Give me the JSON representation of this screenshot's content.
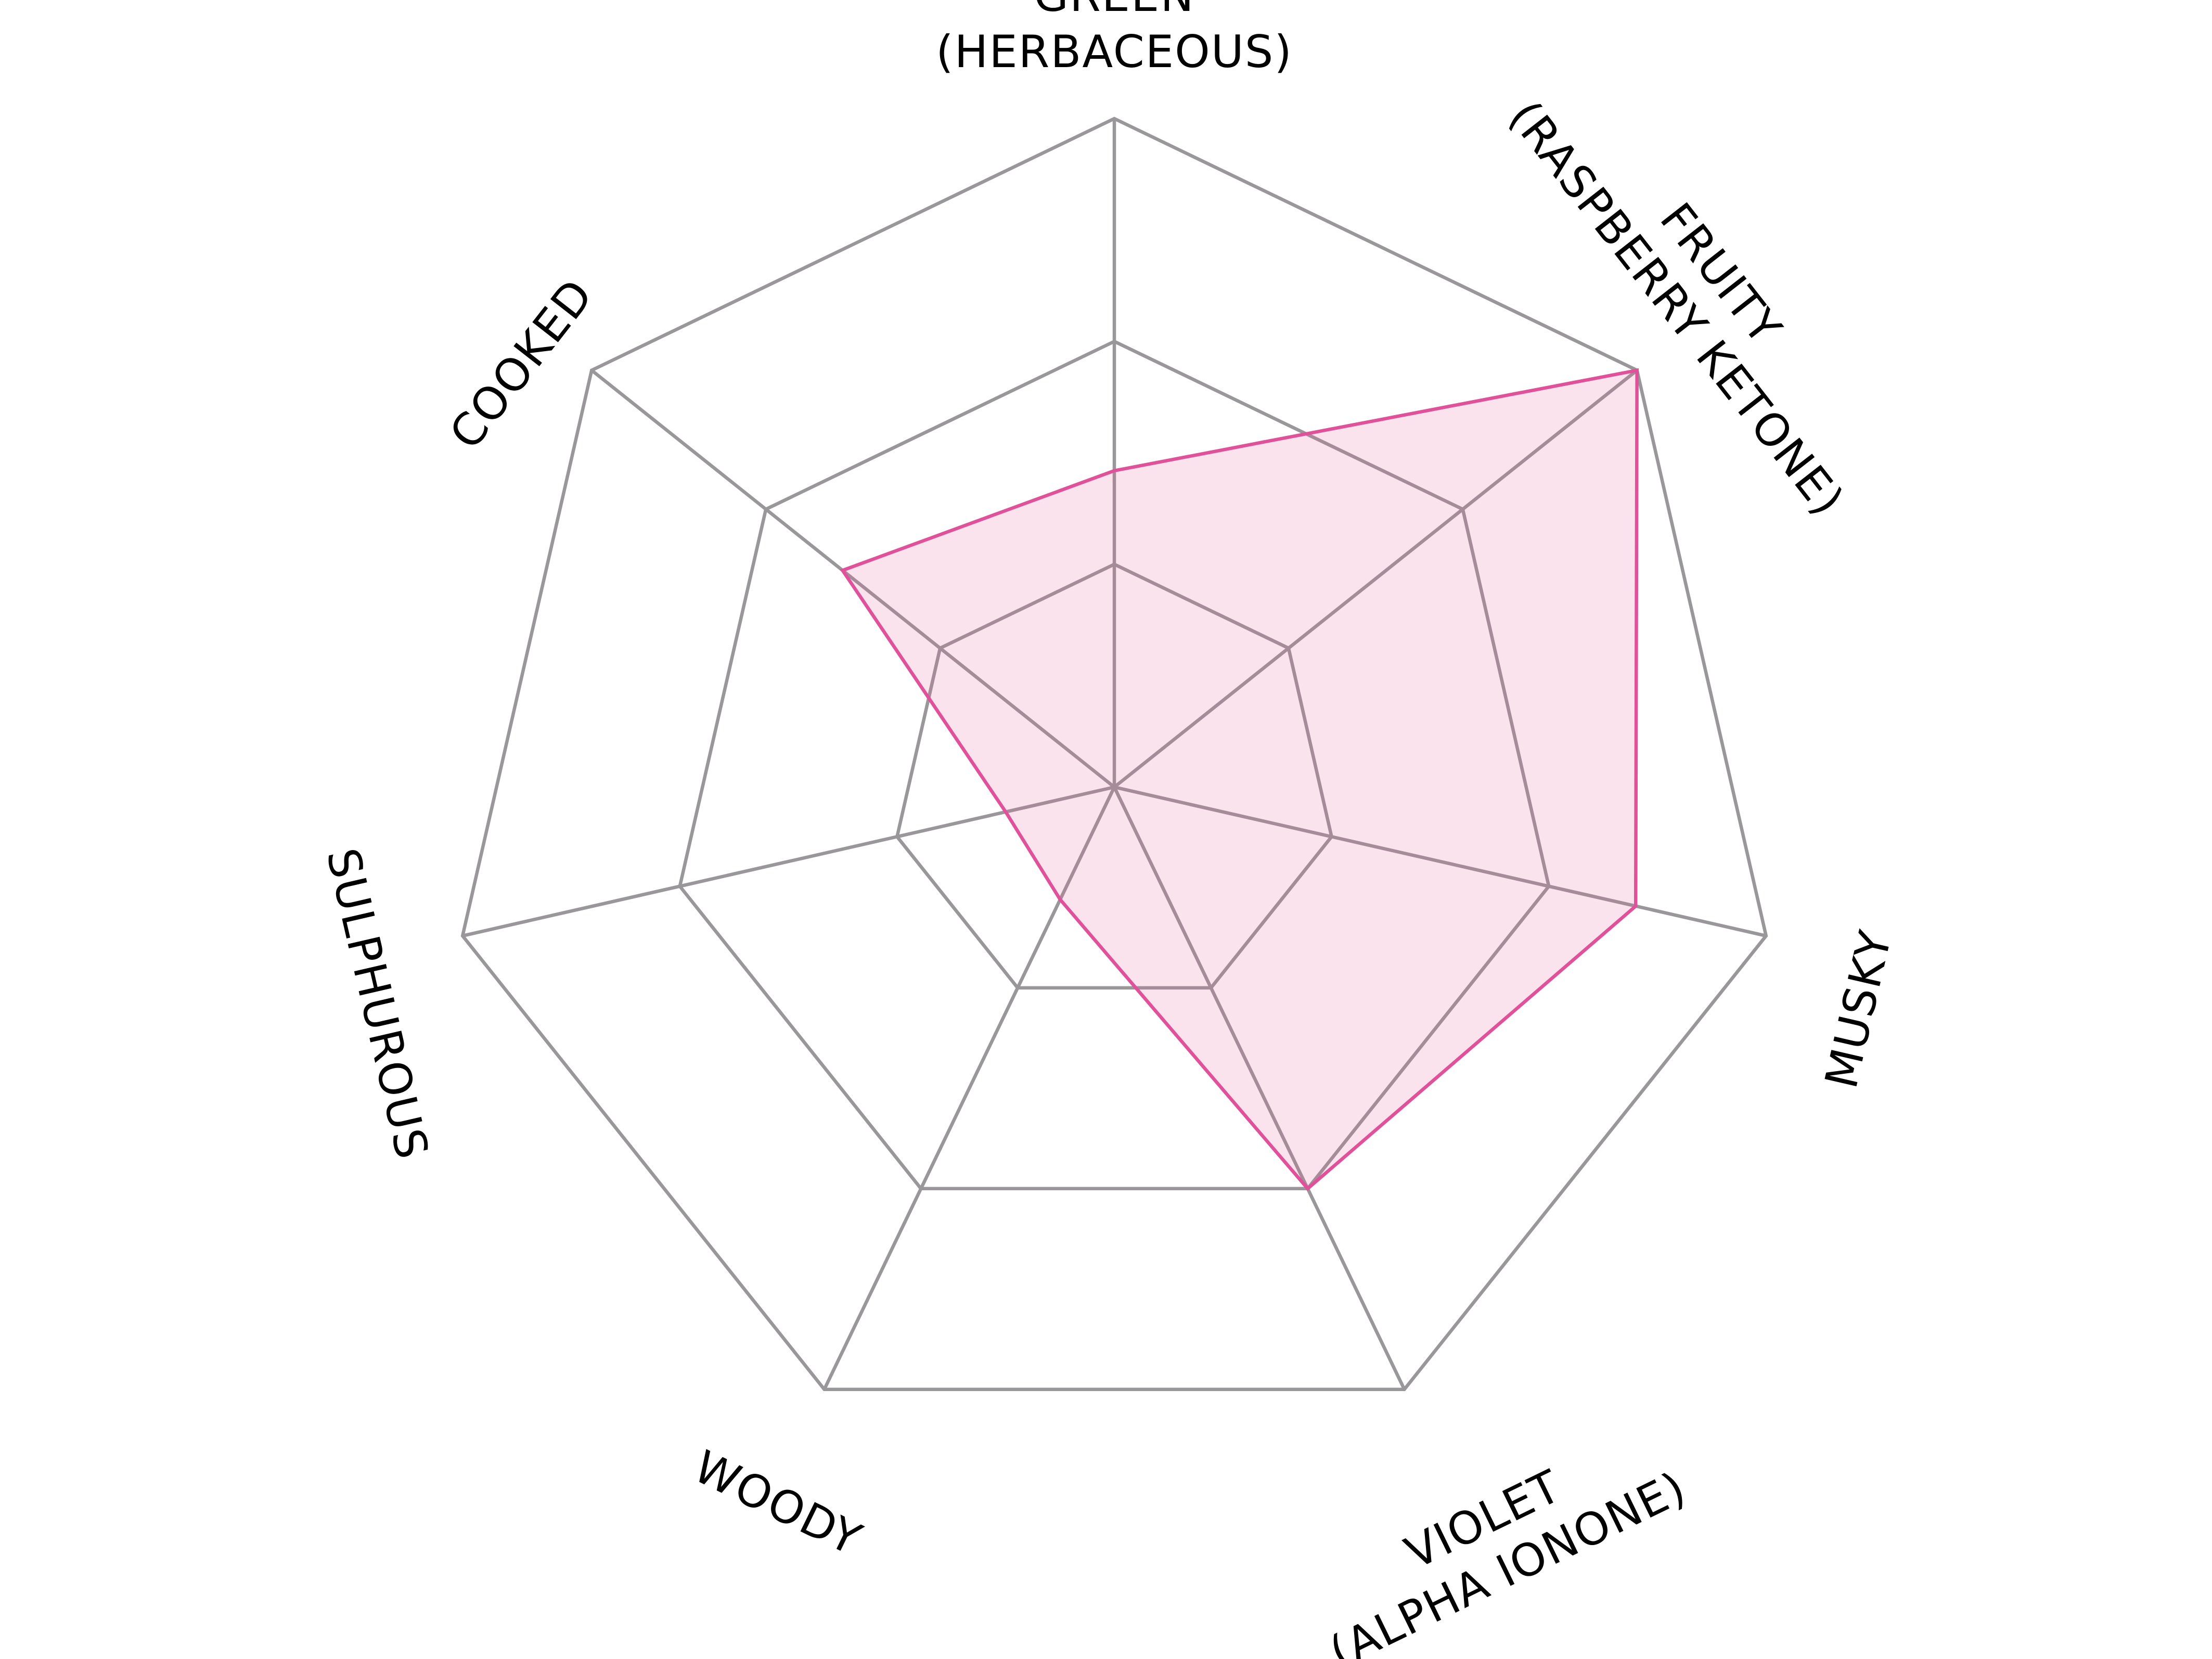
{
  "chart_data": {
    "type": "radar",
    "title": "",
    "axes": [
      {
        "label": [
          "GREEN",
          "(HERBACEOUS)"
        ]
      },
      {
        "label": [
          "FRUITY",
          "(RASPBERRY KETONE)"
        ]
      },
      {
        "label": [
          "MUSKY"
        ]
      },
      {
        "label": [
          "VIOLET",
          "(ALPHA IONONE)"
        ]
      },
      {
        "label": [
          "WOODY"
        ]
      },
      {
        "label": [
          "SULPHUROUS"
        ]
      },
      {
        "label": [
          "COOKED"
        ]
      }
    ],
    "rings": 3,
    "range": [
      0,
      3
    ],
    "grid": true,
    "series": [
      {
        "values": [
          1.42,
          3.0,
          2.4,
          2.0,
          0.56,
          0.5,
          1.56
        ],
        "color": "#e0519a",
        "fill": "#fbe4ef"
      }
    ]
  }
}
